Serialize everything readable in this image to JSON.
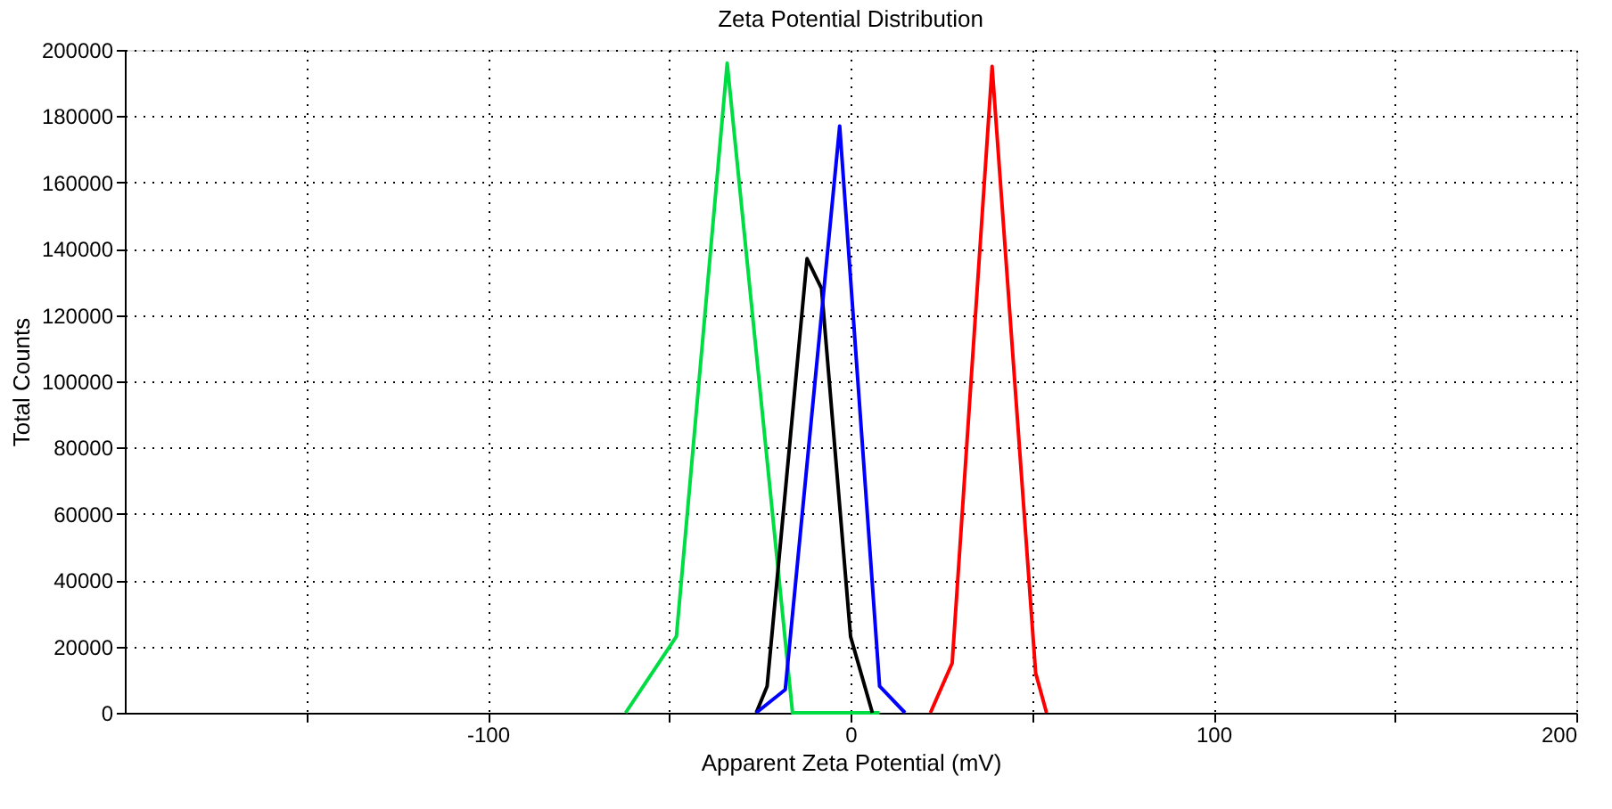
{
  "chart_data": {
    "type": "line",
    "title": "Zeta Potential Distribution",
    "xlabel": "Apparent Zeta Potential (mV)",
    "ylabel": "Total Counts",
    "xlim": [
      -200,
      200
    ],
    "xticks": [
      {
        "value": -150,
        "label": null
      },
      -100,
      {
        "value": -50,
        "label": null
      },
      0,
      {
        "value": 50,
        "label": null
      },
      100,
      {
        "value": 150,
        "label": null
      },
      200
    ],
    "ylim": [
      0,
      200000
    ],
    "yticks": [
      0,
      20000,
      40000,
      60000,
      80000,
      100000,
      120000,
      140000,
      160000,
      180000,
      200000
    ],
    "grid": true,
    "line_style": "solid",
    "marker": "none",
    "series": [
      {
        "color": "#00dd44",
        "x": [
          -62,
          -48,
          -34,
          -16,
          8
        ],
        "values": [
          0,
          23000,
          196000,
          0,
          0
        ]
      },
      {
        "color": "#000000",
        "x": [
          -26,
          -23,
          -12,
          -8,
          0,
          6
        ],
        "values": [
          0,
          8000,
          137000,
          128000,
          23000,
          0
        ]
      },
      {
        "color": "#0000ff",
        "x": [
          -26,
          -18,
          -3,
          8,
          15
        ],
        "values": [
          0,
          7000,
          177000,
          8000,
          0
        ]
      },
      {
        "color": "#ff0000",
        "x": [
          22,
          28,
          39,
          51,
          54
        ],
        "values": [
          0,
          15000,
          195000,
          12000,
          0
        ]
      }
    ]
  }
}
